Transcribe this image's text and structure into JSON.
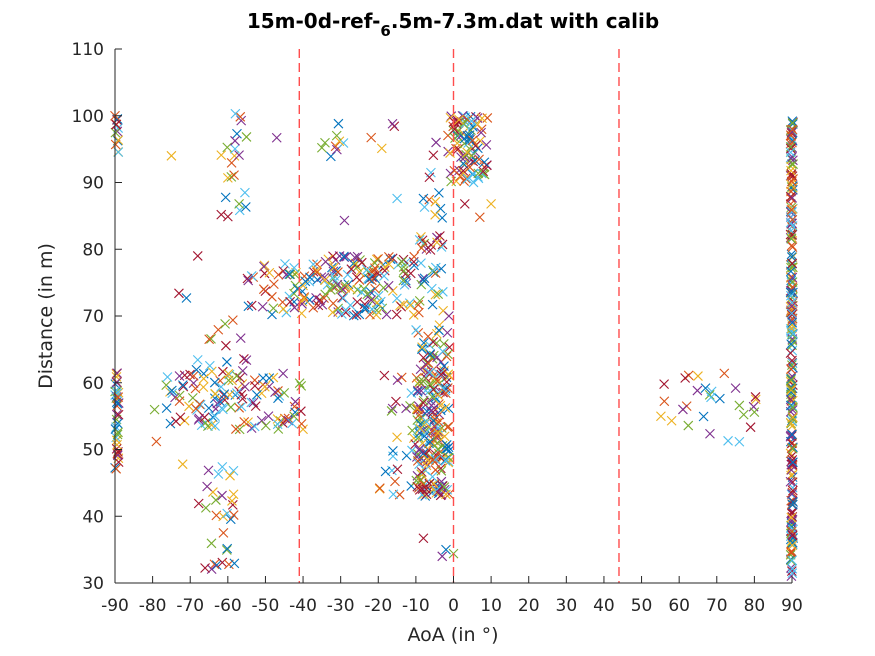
{
  "chart_data": {
    "type": "scatter",
    "title_main": "15m-0d-ref-",
    "title_sub": "6",
    "title_rest": ".5m-7.3m.dat with calib",
    "xlabel": "AoA (in °)",
    "ylabel": "Distance (in m)",
    "xlim": [
      -90,
      90
    ],
    "ylim": [
      30,
      110
    ],
    "xticks": [
      "-90",
      "-80",
      "-70",
      "-60",
      "-50",
      "-40",
      "-30",
      "-20",
      "-10",
      "0",
      "10",
      "20",
      "30",
      "40",
      "50",
      "60",
      "70",
      "80",
      "90"
    ],
    "yticks": [
      "30",
      "40",
      "50",
      "60",
      "70",
      "80",
      "90",
      "100",
      "110"
    ],
    "reference_lines_x": [
      -41,
      0,
      44
    ],
    "reference_line_color": "#ff4d4d",
    "marker": "x",
    "series_colors": [
      "#0072bd",
      "#d95319",
      "#edb120",
      "#7e2f8e",
      "#77ac30",
      "#4dbeee",
      "#a2142f"
    ],
    "clusters": [
      {
        "x": [
          -90,
          -89
        ],
        "y": [
          47,
          62
        ],
        "n": 40
      },
      {
        "x": [
          -90,
          -89
        ],
        "y": [
          94,
          100
        ],
        "n": 12
      },
      {
        "x": [
          -80,
          -40
        ],
        "y": [
          53,
          62
        ],
        "n": 110
      },
      {
        "x": [
          -68,
          -58
        ],
        "y": [
          32,
          50
        ],
        "n": 30
      },
      {
        "x": [
          -68,
          -55
        ],
        "y": [
          58,
          70
        ],
        "n": 25
      },
      {
        "x": [
          -62,
          -55
        ],
        "y": [
          84,
          100
        ],
        "n": 20
      },
      {
        "x": [
          -55,
          -40
        ],
        "y": [
          70,
          78
        ],
        "n": 40
      },
      {
        "x": [
          -40,
          -10
        ],
        "y": [
          70,
          79
        ],
        "n": 150
      },
      {
        "x": [
          -35,
          -15
        ],
        "y": [
          92,
          99
        ],
        "n": 12
      },
      {
        "x": [
          -20,
          -10
        ],
        "y": [
          43,
          62
        ],
        "n": 25
      },
      {
        "x": [
          -10,
          -1
        ],
        "y": [
          43,
          66
        ],
        "n": 220
      },
      {
        "x": [
          -10,
          -1
        ],
        "y": [
          66,
          82
        ],
        "n": 40
      },
      {
        "x": [
          -8,
          0
        ],
        "y": [
          84,
          98
        ],
        "n": 15
      },
      {
        "x": [
          -1,
          9
        ],
        "y": [
          90,
          100
        ],
        "n": 90
      },
      {
        "x": [
          55,
          82
        ],
        "y": [
          51,
          62
        ],
        "n": 18
      },
      {
        "x": [
          89.6,
          90.3
        ],
        "y": [
          31,
          100
        ],
        "n": 260
      }
    ],
    "points": [
      [
        -90,
        100
      ],
      [
        -75,
        94
      ],
      [
        -47,
        96.7
      ],
      [
        -35,
        95.2
      ],
      [
        -15,
        87.6
      ],
      [
        -8,
        36.7
      ],
      [
        -8,
        87.6
      ],
      [
        7,
        84.8
      ],
      [
        10,
        86.8
      ],
      [
        -29,
        84.3
      ],
      [
        -57,
        86.8
      ],
      [
        -58,
        100.3
      ],
      [
        -68,
        79
      ],
      [
        -71,
        72.7
      ],
      [
        -79,
        51.2
      ],
      [
        -72,
        47.8
      ],
      [
        -3,
        34
      ],
      [
        0,
        34.4
      ],
      [
        -16,
        43.3
      ],
      [
        -73,
        73.4
      ],
      [
        -2,
        35
      ],
      [
        62,
        56.5
      ],
      [
        65,
        61
      ],
      [
        75,
        59.2
      ],
      [
        80,
        55.6
      ],
      [
        73,
        51.3
      ],
      [
        56,
        59.8
      ],
      [
        67,
        59.2
      ],
      [
        72,
        61.4
      ],
      [
        58,
        54.3
      ],
      [
        61,
        56
      ],
      [
        76,
        56.6
      ],
      [
        -9,
        81.4
      ],
      [
        3,
        86.8
      ],
      [
        -3,
        84.7
      ]
    ]
  }
}
